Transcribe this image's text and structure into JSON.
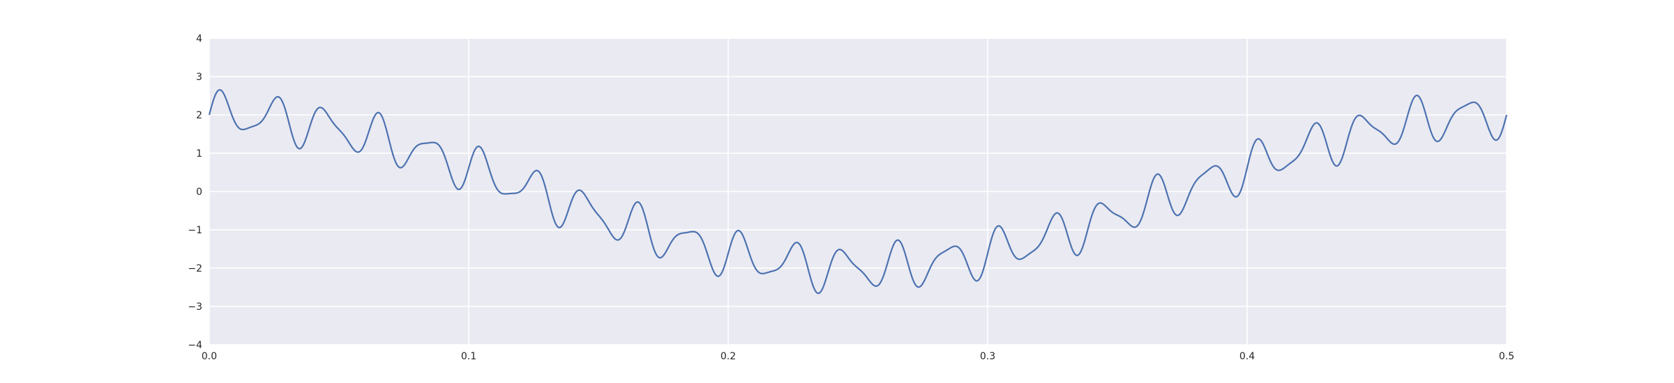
{
  "chart_data": {
    "type": "line",
    "title": "",
    "xlabel": "",
    "ylabel": "",
    "xlim": [
      0.0,
      0.5
    ],
    "ylim": [
      -4,
      4
    ],
    "grid": true,
    "x_ticks": [
      {
        "value": 0.0,
        "label": "0.0"
      },
      {
        "value": 0.1,
        "label": "0.1"
      },
      {
        "value": 0.2,
        "label": "0.2"
      },
      {
        "value": 0.3,
        "label": "0.3"
      },
      {
        "value": 0.4,
        "label": "0.4"
      },
      {
        "value": 0.5,
        "label": "0.5"
      }
    ],
    "y_ticks": [
      {
        "value": 4,
        "label": "4"
      },
      {
        "value": 3,
        "label": "3"
      },
      {
        "value": 2,
        "label": "2"
      },
      {
        "value": 1,
        "label": "1"
      },
      {
        "value": 0,
        "label": "0"
      },
      {
        "value": -1,
        "label": "−1"
      },
      {
        "value": -2,
        "label": "−2"
      },
      {
        "value": -3,
        "label": "−3"
      },
      {
        "value": -4,
        "label": "−4"
      }
    ],
    "series": [
      {
        "color": "#4c72b0",
        "signal": {
          "components": [
            {
              "amplitude": 2.0,
              "frequency_hz": 2,
              "phase": "cos"
            },
            {
              "amplitude": 0.5,
              "frequency_hz": 50,
              "phase": "sin"
            },
            {
              "amplitude": 0.2,
              "frequency_hz": 80,
              "phase": "sin"
            }
          ]
        }
      }
    ]
  },
  "colors": {
    "plot_background": "#eaeaf2",
    "grid": "#ffffff",
    "line": "#4c72b0",
    "text": "#262626"
  }
}
